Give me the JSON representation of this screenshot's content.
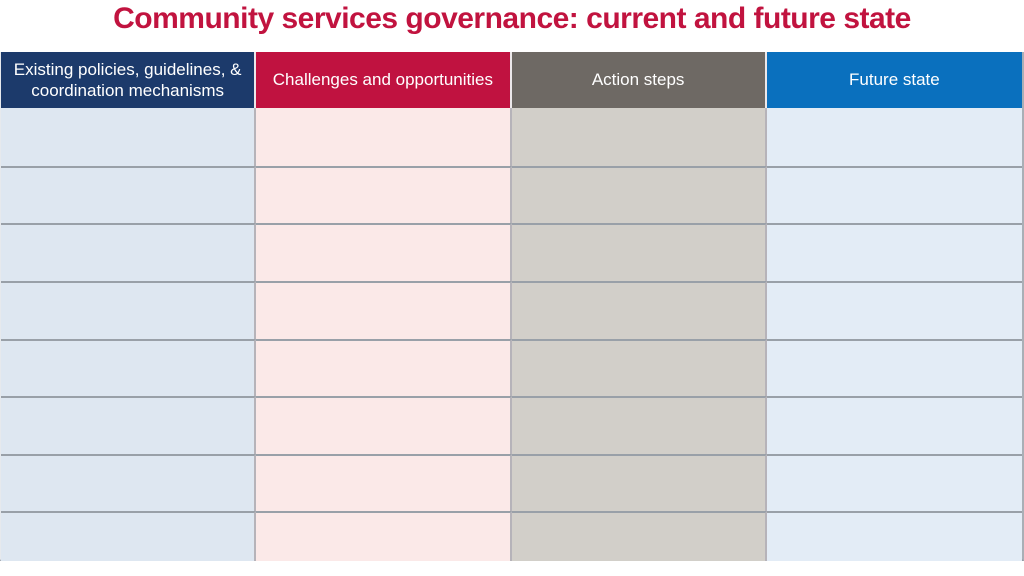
{
  "slide": {
    "title": "Community services governance: current and future state",
    "title_color": "#C1133F"
  },
  "table": {
    "columns": [
      {
        "id": "existing-policies",
        "label": "Existing policies, guidelines, & coordination mechanisms",
        "header_bg": "#1C3A6B",
        "header_text_color": "#FFFFFF",
        "body_bg": "#DEE7F1"
      },
      {
        "id": "challenges-opportunities",
        "label": "Challenges and opportunities",
        "header_bg": "#C01240",
        "header_text_color": "#FFFFFF",
        "body_bg": "#FBE9E8"
      },
      {
        "id": "action-steps",
        "label": "Action steps",
        "header_bg": "#6E6964",
        "header_text_color": "#FFFFFF",
        "body_bg": "#D2CFC9"
      },
      {
        "id": "future-state",
        "label": "Future state",
        "header_bg": "#0A70BE",
        "header_text_color": "#FFFFFF",
        "body_bg": "#E3ECF6"
      }
    ],
    "rows": [
      [
        "",
        "",
        "",
        ""
      ],
      [
        "",
        "",
        "",
        ""
      ],
      [
        "",
        "",
        "",
        ""
      ],
      [
        "",
        "",
        "",
        ""
      ],
      [
        "",
        "",
        "",
        ""
      ],
      [
        "",
        "",
        "",
        ""
      ],
      [
        "",
        "",
        "",
        ""
      ],
      [
        "",
        "",
        "",
        ""
      ]
    ]
  }
}
